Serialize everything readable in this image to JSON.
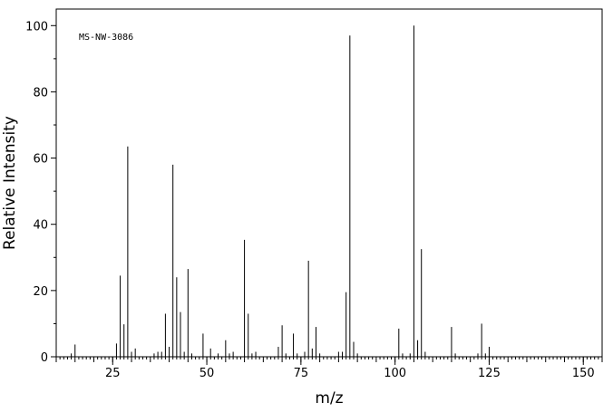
{
  "chart_data": {
    "type": "bar",
    "subtype": "mass-spectrum-sticks",
    "title": "",
    "annotation": "MS-NW-3086",
    "xlabel": "m/z",
    "ylabel": "Relative Intensity",
    "xlim": [
      10,
      155
    ],
    "ylim": [
      0,
      105
    ],
    "x_ticks": [
      25,
      50,
      75,
      100,
      125,
      150
    ],
    "y_ticks": [
      0,
      20,
      40,
      60,
      80,
      100
    ],
    "grid": false,
    "legend": "none",
    "color": "#000000",
    "series": [
      {
        "peaks": [
          [
            14,
            1.0
          ],
          [
            15,
            3.7
          ],
          [
            26,
            4.0
          ],
          [
            27,
            24.5
          ],
          [
            28,
            9.8
          ],
          [
            29,
            63.5
          ],
          [
            30,
            1.5
          ],
          [
            31,
            2.5
          ],
          [
            36,
            1.0
          ],
          [
            37,
            1.5
          ],
          [
            38,
            1.5
          ],
          [
            39,
            13.0
          ],
          [
            40,
            3.0
          ],
          [
            41,
            58.0
          ],
          [
            42,
            24.0
          ],
          [
            43,
            13.5
          ],
          [
            44,
            1.5
          ],
          [
            45,
            26.5
          ],
          [
            46,
            1.0
          ],
          [
            49,
            7.0
          ],
          [
            51,
            2.5
          ],
          [
            53,
            1.0
          ],
          [
            55,
            5.0
          ],
          [
            56,
            1.0
          ],
          [
            57,
            1.5
          ],
          [
            60,
            35.3
          ],
          [
            61,
            13.0
          ],
          [
            62,
            1.0
          ],
          [
            63,
            1.5
          ],
          [
            69,
            3.0
          ],
          [
            70,
            9.5
          ],
          [
            71,
            1.0
          ],
          [
            73,
            7.0
          ],
          [
            74,
            1.0
          ],
          [
            76,
            1.5
          ],
          [
            77,
            29.0
          ],
          [
            78,
            2.5
          ],
          [
            79,
            9.0
          ],
          [
            80,
            1.0
          ],
          [
            85,
            1.5
          ],
          [
            86,
            1.5
          ],
          [
            87,
            19.5
          ],
          [
            88,
            97.0
          ],
          [
            89,
            4.5
          ],
          [
            90,
            1.0
          ],
          [
            101,
            8.5
          ],
          [
            102,
            1.0
          ],
          [
            104,
            1.0
          ],
          [
            105,
            100.0
          ],
          [
            106,
            5.0
          ],
          [
            107,
            32.5
          ],
          [
            108,
            1.5
          ],
          [
            115,
            9.0
          ],
          [
            116,
            1.0
          ],
          [
            122,
            1.0
          ],
          [
            123,
            10.0
          ],
          [
            124,
            1.0
          ],
          [
            125,
            3.0
          ]
        ]
      }
    ]
  }
}
